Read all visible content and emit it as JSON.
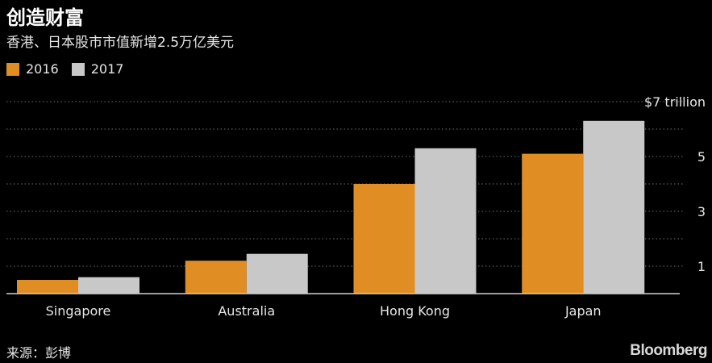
{
  "chart_data": {
    "type": "bar",
    "title": "创造财富",
    "subtitle": "香港、日本股市市值新增2.5万亿美元",
    "categories": [
      "Singapore",
      "Australia",
      "Hong Kong",
      "Japan"
    ],
    "series": [
      {
        "name": "2016",
        "values": [
          0.5,
          1.2,
          4.0,
          5.1
        ],
        "color": "#e08e24"
      },
      {
        "name": "2017",
        "values": [
          0.6,
          1.45,
          5.3,
          6.3
        ],
        "color": "#c8c8c8"
      }
    ],
    "y_ticks": [
      {
        "value": 1,
        "label": "1"
      },
      {
        "value": 3,
        "label": "3"
      },
      {
        "value": 5,
        "label": "5"
      },
      {
        "value": 7,
        "label": "$7 trillion"
      }
    ],
    "ylim": [
      0,
      7
    ],
    "grid": true,
    "legend_position": "top-left",
    "source": "来源：彭博",
    "brand": "Bloomberg"
  }
}
